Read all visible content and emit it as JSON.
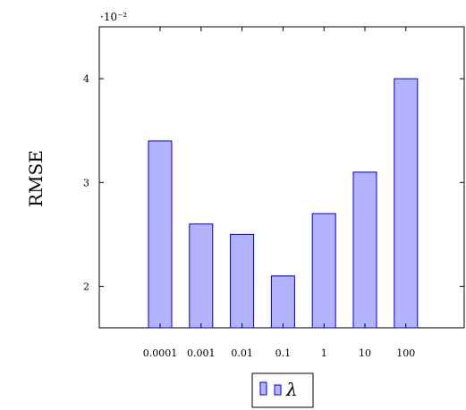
{
  "chart_data": {
    "type": "bar",
    "categories": [
      "0.0001",
      "0.001",
      "0.01",
      "0.1",
      "1",
      "10",
      "100"
    ],
    "series": [
      {
        "name": "λ",
        "values": [
          3.4,
          2.6,
          2.5,
          2.1,
          2.7,
          3.1,
          4.0
        ]
      }
    ],
    "ylabel": "RMSE",
    "xlabel": "",
    "y_scale_note": "·10⁻²",
    "ylim": [
      1.6,
      4.5
    ],
    "yticks": [
      "2",
      "3",
      "4"
    ],
    "grid": false,
    "legend": {
      "placement": "bottom-center",
      "label": "λ"
    },
    "colors": {
      "fill": "#b3b3ff",
      "stroke": "#0000cc"
    }
  }
}
